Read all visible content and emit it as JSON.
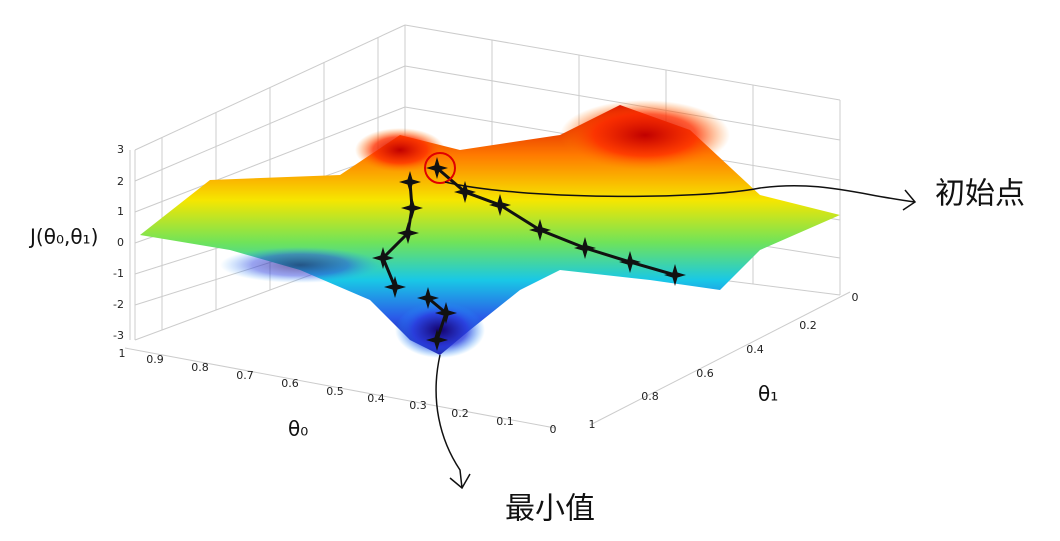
{
  "plot": {
    "z_label": "J(θ₀,θ₁)",
    "z_ticks": [
      "3",
      "2",
      "1",
      "0",
      "-1",
      "-2",
      "-3"
    ],
    "x_label": "θ₀",
    "x_ticks": [
      "1",
      "0.9",
      "0.8",
      "0.7",
      "0.6",
      "0.5",
      "0.4",
      "0.3",
      "0.2",
      "0.1",
      "0"
    ],
    "y_label": "θ₁",
    "y_ticks": [
      "0",
      "0.2",
      "0.4",
      "0.6",
      "0.8",
      "1"
    ]
  },
  "annotations": {
    "start": "初始点",
    "minimum": "最小值"
  }
}
